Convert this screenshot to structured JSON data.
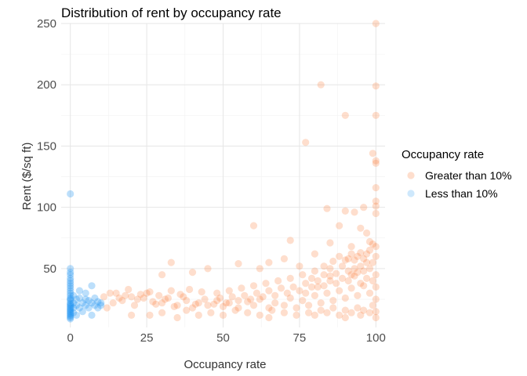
{
  "chart_data": {
    "type": "scatter",
    "title": "Distribution of rent by occupancy rate",
    "xlabel": "Occupancy rate",
    "ylabel": "Rent ($/sq ft)",
    "xlim": [
      -3,
      103
    ],
    "ylim": [
      2,
      250
    ],
    "x_ticks": [
      0,
      25,
      50,
      75,
      100
    ],
    "y_ticks": [
      50,
      100,
      150,
      200,
      250
    ],
    "x_tick_labels": [
      "0",
      "25",
      "50",
      "75",
      "100"
    ],
    "y_tick_labels": [
      "50",
      "100",
      "150",
      "200",
      "250"
    ],
    "grid": true,
    "legend": {
      "title": "Occupancy rate",
      "position": "right"
    },
    "series": [
      {
        "name": "Greater than 10%",
        "color": "#f96a1b",
        "points": [
          [
            100,
            250
          ],
          [
            82,
            200
          ],
          [
            100,
            199
          ],
          [
            90,
            175
          ],
          [
            100,
            175
          ],
          [
            77,
            153
          ],
          [
            99,
            144
          ],
          [
            100,
            138
          ],
          [
            100,
            136
          ],
          [
            100,
            116
          ],
          [
            100,
            105
          ],
          [
            100,
            101
          ],
          [
            96,
            100
          ],
          [
            84,
            99
          ],
          [
            90,
            97
          ],
          [
            93,
            96
          ],
          [
            100,
            95
          ],
          [
            60,
            85
          ],
          [
            88,
            85
          ],
          [
            95,
            83
          ],
          [
            97,
            79
          ],
          [
            72,
            73
          ],
          [
            85,
            71
          ],
          [
            92,
            68
          ],
          [
            80,
            62
          ],
          [
            70,
            58
          ],
          [
            90,
            57
          ],
          [
            65,
            55
          ],
          [
            55,
            54
          ],
          [
            75,
            52
          ],
          [
            33,
            55
          ],
          [
            45,
            50
          ],
          [
            30,
            45
          ],
          [
            40,
            47
          ],
          [
            62,
            50
          ],
          [
            85,
            50
          ],
          [
            15,
            30
          ],
          [
            18,
            28
          ],
          [
            20,
            27
          ],
          [
            22,
            25
          ],
          [
            25,
            30
          ],
          [
            27,
            23
          ],
          [
            30,
            22
          ],
          [
            32,
            26
          ],
          [
            35,
            20
          ],
          [
            38,
            24
          ],
          [
            40,
            18
          ],
          [
            42,
            22
          ],
          [
            45,
            20
          ],
          [
            48,
            24
          ],
          [
            50,
            19
          ],
          [
            52,
            22
          ],
          [
            55,
            18
          ],
          [
            58,
            23
          ],
          [
            60,
            20
          ],
          [
            62,
            25
          ],
          [
            65,
            18
          ],
          [
            67,
            22
          ],
          [
            70,
            20
          ],
          [
            72,
            26
          ],
          [
            74,
            18
          ],
          [
            76,
            24
          ],
          [
            78,
            20
          ],
          [
            80,
            28
          ],
          [
            82,
            22
          ],
          [
            84,
            30
          ],
          [
            86,
            24
          ],
          [
            88,
            32
          ],
          [
            90,
            26
          ],
          [
            92,
            34
          ],
          [
            94,
            28
          ],
          [
            96,
            36
          ],
          [
            98,
            30
          ],
          [
            99,
            40
          ],
          [
            100,
            45
          ],
          [
            100,
            35
          ],
          [
            100,
            25
          ],
          [
            100,
            15
          ],
          [
            99,
            20
          ],
          [
            97,
            42
          ],
          [
            95,
            38
          ],
          [
            93,
            44
          ],
          [
            91,
            40
          ],
          [
            89,
            42
          ],
          [
            87,
            38
          ],
          [
            85,
            44
          ],
          [
            83,
            36
          ],
          [
            81,
            40
          ],
          [
            79,
            35
          ],
          [
            77,
            38
          ],
          [
            75,
            32
          ],
          [
            73,
            35
          ],
          [
            71,
            30
          ],
          [
            69,
            34
          ],
          [
            67,
            28
          ],
          [
            65,
            32
          ],
          [
            63,
            27
          ],
          [
            61,
            30
          ],
          [
            59,
            25
          ],
          [
            57,
            28
          ],
          [
            55,
            24
          ],
          [
            53,
            27
          ],
          [
            51,
            22
          ],
          [
            49,
            26
          ],
          [
            47,
            21
          ],
          [
            44,
            25
          ],
          [
            41,
            21
          ],
          [
            37,
            27
          ],
          [
            34,
            19
          ],
          [
            31,
            25
          ],
          [
            28,
            21
          ],
          [
            24,
            26
          ],
          [
            21,
            20
          ],
          [
            17,
            24
          ],
          [
            14,
            22
          ],
          [
            12,
            18
          ],
          [
            20,
            12
          ],
          [
            35,
            10
          ],
          [
            50,
            12
          ],
          [
            65,
            10
          ],
          [
            80,
            12
          ],
          [
            90,
            10
          ],
          [
            95,
            12
          ],
          [
            100,
            10
          ],
          [
            98,
            14
          ],
          [
            96,
            16
          ],
          [
            94,
            18
          ],
          [
            92,
            14
          ],
          [
            90,
            16
          ],
          [
            88,
            12
          ],
          [
            86,
            18
          ],
          [
            84,
            14
          ],
          [
            82,
            16
          ],
          [
            78,
            14
          ],
          [
            74,
            12
          ],
          [
            70,
            14
          ],
          [
            66,
            16
          ],
          [
            62,
            12
          ],
          [
            58,
            14
          ],
          [
            54,
            16
          ],
          [
            46,
            14
          ],
          [
            42,
            12
          ],
          [
            38,
            16
          ],
          [
            30,
            14
          ],
          [
            26,
            12
          ],
          [
            100,
            60
          ],
          [
            99,
            55
          ],
          [
            98,
            50
          ],
          [
            97,
            55
          ],
          [
            96,
            48
          ],
          [
            95,
            52
          ],
          [
            94,
            47
          ],
          [
            93,
            50
          ],
          [
            92,
            45
          ],
          [
            91,
            48
          ],
          [
            89,
            52
          ],
          [
            87,
            46
          ],
          [
            85,
            40
          ],
          [
            83,
            45
          ],
          [
            81,
            35
          ],
          [
            79,
            42
          ],
          [
            77,
            30
          ],
          [
            98,
            65
          ],
          [
            97,
            62
          ],
          [
            96,
            58
          ],
          [
            95,
            63
          ],
          [
            94,
            60
          ],
          [
            93,
            57
          ],
          [
            99,
            70
          ],
          [
            98,
            72
          ],
          [
            100,
            68
          ],
          [
            92,
            62
          ],
          [
            91,
            58
          ],
          [
            88,
            60
          ],
          [
            86,
            56
          ],
          [
            83,
            52
          ],
          [
            80,
            48
          ],
          [
            76,
            45
          ],
          [
            72,
            42
          ],
          [
            68,
            40
          ],
          [
            64,
            38
          ],
          [
            60,
            36
          ],
          [
            56,
            34
          ],
          [
            52,
            32
          ],
          [
            48,
            30
          ],
          [
            43,
            31
          ],
          [
            39,
            33
          ],
          [
            36,
            29
          ],
          [
            33,
            32
          ],
          [
            29,
            28
          ],
          [
            26,
            31
          ],
          [
            23,
            29
          ],
          [
            19,
            33
          ],
          [
            16,
            26
          ],
          [
            13,
            30
          ],
          [
            11,
            27
          ]
        ]
      },
      {
        "name": "Less than 10%",
        "color": "#2196f3",
        "points": [
          [
            0,
            111
          ],
          [
            0,
            50
          ],
          [
            0,
            47
          ],
          [
            0,
            45
          ],
          [
            0,
            42
          ],
          [
            0,
            40
          ],
          [
            0,
            38
          ],
          [
            0,
            36
          ],
          [
            0,
            34
          ],
          [
            0,
            32
          ],
          [
            0,
            30
          ],
          [
            0,
            28
          ],
          [
            0,
            26
          ],
          [
            0,
            25
          ],
          [
            0,
            24
          ],
          [
            0,
            22
          ],
          [
            0,
            21
          ],
          [
            0,
            20
          ],
          [
            0,
            19
          ],
          [
            0,
            18
          ],
          [
            0,
            17
          ],
          [
            0,
            16
          ],
          [
            0,
            15
          ],
          [
            0,
            14
          ],
          [
            0,
            13
          ],
          [
            0,
            12
          ],
          [
            0,
            11
          ],
          [
            0,
            10
          ],
          [
            0,
            9
          ],
          [
            1,
            28
          ],
          [
            1,
            22
          ],
          [
            1,
            18
          ],
          [
            1,
            14
          ],
          [
            2,
            25
          ],
          [
            2,
            20
          ],
          [
            2,
            12
          ],
          [
            3,
            26
          ],
          [
            3,
            18
          ],
          [
            4,
            22
          ],
          [
            4,
            15
          ],
          [
            5,
            25
          ],
          [
            5,
            20
          ],
          [
            6,
            18
          ],
          [
            6,
            24
          ],
          [
            7,
            36
          ],
          [
            7,
            22
          ],
          [
            8,
            20
          ],
          [
            8,
            26
          ],
          [
            9,
            18
          ],
          [
            9,
            23
          ],
          [
            10,
            20
          ],
          [
            10,
            22
          ],
          [
            7,
            12
          ],
          [
            5,
            30
          ],
          [
            3,
            32
          ]
        ]
      }
    ]
  }
}
